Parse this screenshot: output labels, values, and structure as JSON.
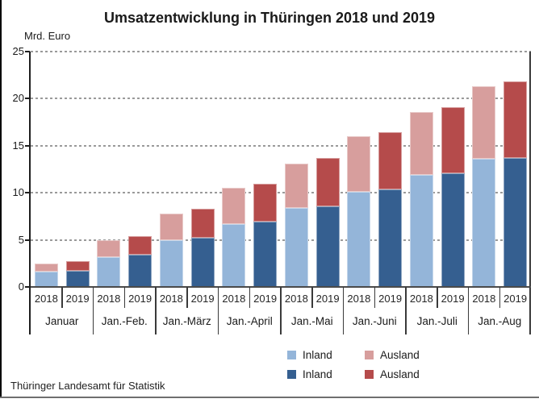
{
  "title": "Umsatzentwicklung in Thüringen 2018 und 2019",
  "y_unit_label": "Mrd. Euro",
  "source": "Thüringer Landesamt für Statistik",
  "colors": {
    "inland_2018": "#94b5d9",
    "ausland_2018": "#d79e9d",
    "inland_2019": "#355f90",
    "ausland_2019": "#b54b4b",
    "gridline": "#9a9a9a",
    "axis": "#1f1f1f"
  },
  "chart_data": {
    "type": "bar",
    "stacked": true,
    "title": "Umsatzentwicklung in Thüringen 2018 und 2019",
    "ylabel": "Mrd. Euro",
    "ylim": [
      0,
      25
    ],
    "yticks": [
      0,
      5,
      10,
      15,
      20,
      25
    ],
    "grid": true,
    "legend_position": "bottom",
    "categories": [
      "Januar",
      "Jan.-Feb.",
      "Jan.-März",
      "Jan.-April",
      "Jan.-Mai",
      "Jan.-Juni",
      "Jan.-Juli",
      "Jan.-Aug"
    ],
    "sub_categories": [
      "2018",
      "2019"
    ],
    "series": [
      {
        "name": "Inland",
        "year": "2018",
        "color": "#94b5d9",
        "values": [
          1.6,
          3.2,
          5.0,
          6.7,
          8.4,
          10.1,
          11.9,
          13.6
        ]
      },
      {
        "name": "Ausland",
        "year": "2018",
        "color": "#d79e9d",
        "values": [
          0.9,
          1.8,
          2.8,
          3.8,
          4.7,
          5.9,
          6.7,
          7.7
        ]
      },
      {
        "name": "Inland",
        "year": "2019",
        "color": "#355f90",
        "values": [
          1.7,
          3.4,
          5.2,
          6.9,
          8.6,
          10.4,
          12.1,
          13.7
        ]
      },
      {
        "name": "Ausland",
        "year": "2019",
        "color": "#b54b4b",
        "values": [
          1.0,
          2.0,
          3.1,
          4.1,
          5.1,
          6.0,
          7.0,
          8.1
        ]
      }
    ],
    "totals_2018": [
      2.5,
      5.0,
      7.8,
      10.5,
      13.1,
      16.0,
      18.6,
      21.3
    ],
    "totals_2019": [
      2.7,
      5.4,
      8.3,
      11.0,
      13.7,
      16.4,
      19.1,
      21.8
    ],
    "legend": [
      {
        "label": "Inland",
        "color": "#94b5d9"
      },
      {
        "label": "Ausland",
        "color": "#d79e9d"
      },
      {
        "label": "Inland",
        "color": "#355f90"
      },
      {
        "label": "Ausland",
        "color": "#b54b4b"
      }
    ]
  }
}
